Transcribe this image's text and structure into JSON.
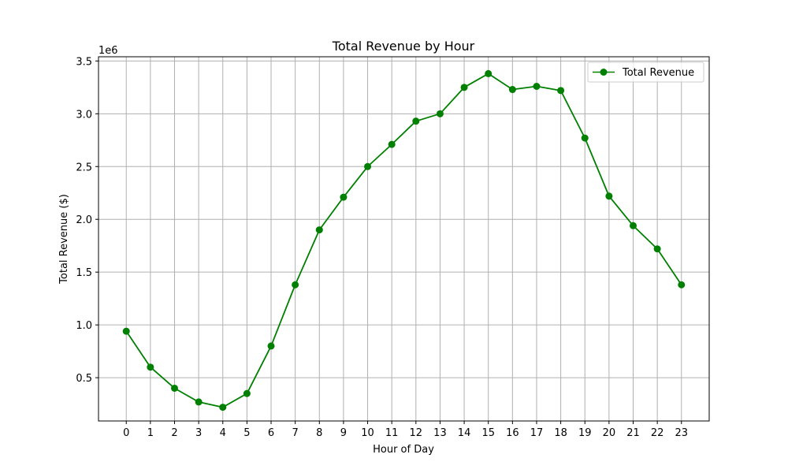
{
  "chart_data": {
    "type": "line",
    "title": "Total Revenue by Hour",
    "xlabel": "Hour of Day",
    "ylabel": "Total Revenue ($)",
    "y_offset_label": "1e6",
    "x": [
      0,
      1,
      2,
      3,
      4,
      5,
      6,
      7,
      8,
      9,
      10,
      11,
      12,
      13,
      14,
      15,
      16,
      17,
      18,
      19,
      20,
      21,
      22,
      23
    ],
    "x_tick_labels": [
      "0",
      "1",
      "2",
      "3",
      "4",
      "5",
      "6",
      "7",
      "8",
      "9",
      "10",
      "11",
      "12",
      "13",
      "14",
      "15",
      "16",
      "17",
      "18",
      "19",
      "20",
      "21",
      "22",
      "23"
    ],
    "y_ticks": [
      0.5,
      1.0,
      1.5,
      2.0,
      2.5,
      3.0,
      3.5
    ],
    "y_tick_labels": [
      "0.5",
      "1.0",
      "1.5",
      "2.0",
      "2.5",
      "3.0",
      "3.5"
    ],
    "ylim": [
      0.09,
      3.54
    ],
    "xlim": [
      -1.15,
      24.15
    ],
    "grid": true,
    "legend_position": "top-right",
    "series": [
      {
        "name": "Total Revenue",
        "color": "#008000",
        "marker": "circle",
        "values": [
          0.94,
          0.6,
          0.4,
          0.27,
          0.22,
          0.35,
          0.8,
          1.38,
          1.9,
          2.21,
          2.5,
          2.71,
          2.93,
          3.0,
          3.25,
          3.38,
          3.23,
          3.26,
          3.22,
          2.77,
          2.22,
          1.94,
          1.72,
          1.38
        ]
      }
    ]
  }
}
